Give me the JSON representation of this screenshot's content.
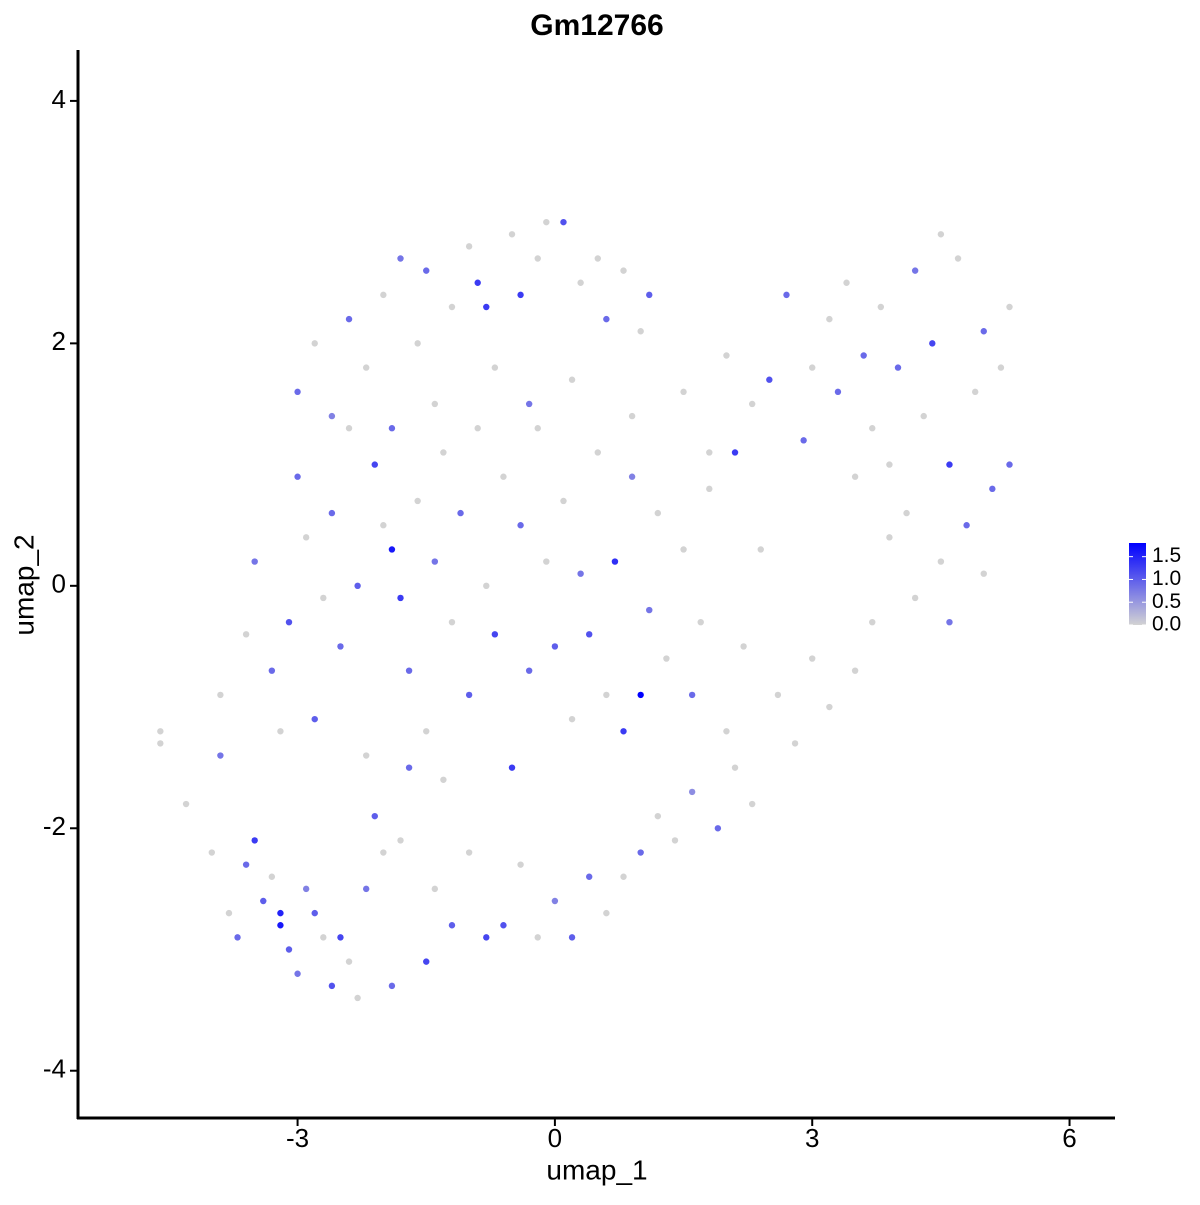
{
  "chart_data": {
    "type": "scatter",
    "title": "Gm12766",
    "x_label": "umap_1",
    "y_label": "umap_2",
    "xlim": [
      -5.56,
      6.53
    ],
    "ylim": [
      -4.39,
      4.42
    ],
    "xticks": [
      -3,
      0,
      3,
      6
    ],
    "yticks": [
      -4,
      -2,
      0,
      2,
      4
    ],
    "color_low": "#d3d3d3",
    "color_high": "#0000ff",
    "colorbar": {
      "lim": [
        0,
        1.8
      ],
      "ticks": [
        {
          "value": 0,
          "label": "0.0"
        },
        0.5,
        {
          "value": 1,
          "label": "1.0"
        },
        1.5
      ]
    },
    "x": [
      -4.6,
      -4.6,
      -4.3,
      -4.0,
      -3.9,
      -3.8,
      -3.7,
      -3.6,
      -3.5,
      -3.4,
      -3.3,
      -3.2,
      -3.2,
      -3.1,
      -3.0,
      -2.9,
      -2.8,
      -2.7,
      -2.6,
      -2.5,
      -2.4,
      -2.3,
      -2.2,
      -2.1,
      -2.0,
      -1.9,
      -1.8,
      -1.7,
      -1.5,
      -1.4,
      -1.3,
      -1.2,
      -1.0,
      -0.8,
      -0.6,
      -0.4,
      -0.2,
      0.0,
      0.2,
      0.4,
      0.6,
      0.8,
      1.0,
      1.2,
      1.4,
      1.6,
      1.9,
      2.1,
      2.3,
      -3.9,
      -3.6,
      -3.5,
      -3.3,
      -3.2,
      -3.1,
      -3.0,
      -2.9,
      -2.8,
      -2.7,
      -2.6,
      -2.5,
      -2.4,
      -2.3,
      -2.2,
      -2.1,
      -2.0,
      -1.9,
      -1.8,
      -1.7,
      -1.6,
      -1.5,
      -1.4,
      -1.3,
      -1.2,
      -1.1,
      -1.0,
      -0.9,
      -0.8,
      -0.7,
      -0.6,
      -0.5,
      -0.4,
      -0.3,
      -0.2,
      -0.1,
      0.0,
      0.1,
      0.2,
      0.3,
      0.4,
      0.5,
      0.6,
      0.7,
      0.8,
      0.9,
      1.0,
      1.1,
      1.2,
      1.3,
      1.5,
      1.6,
      1.7,
      1.8,
      2.0,
      2.2,
      2.4,
      2.6,
      2.8,
      3.0,
      3.2,
      3.5,
      3.7,
      -3.0,
      -2.8,
      -2.6,
      -2.4,
      -2.2,
      -2.0,
      -1.9,
      -1.8,
      -1.6,
      -1.5,
      -1.4,
      -1.2,
      -1.0,
      -0.9,
      -0.8,
      -0.7,
      -0.5,
      -0.4,
      -0.2,
      -0.1,
      0.1,
      0.3,
      0.5,
      0.6,
      0.8,
      1.0,
      1.1,
      0.2,
      -0.3,
      0.9,
      1.5,
      1.8,
      2.0,
      2.1,
      2.3,
      2.5,
      2.7,
      2.9,
      3.0,
      3.2,
      3.3,
      3.4,
      3.5,
      3.6,
      3.7,
      3.8,
      3.9,
      4.0,
      4.1,
      4.2,
      4.3,
      4.4,
      4.5,
      4.6,
      4.7,
      4.8,
      4.9,
      5.0,
      5.1,
      5.2,
      5.3,
      5.3,
      4.5,
      4.2,
      3.9,
      4.6,
      5.0
    ],
    "y": [
      -1.2,
      -1.3,
      -1.8,
      -2.2,
      -1.4,
      -2.7,
      -2.9,
      -2.3,
      -2.1,
      -2.6,
      -2.4,
      -2.8,
      -2.7,
      -3.0,
      -3.2,
      -2.5,
      -2.7,
      -2.9,
      -3.3,
      -2.9,
      -3.1,
      -3.4,
      -2.5,
      -1.9,
      -2.2,
      -3.3,
      -2.1,
      -1.5,
      -3.1,
      -2.5,
      -1.6,
      -2.8,
      -2.2,
      -2.9,
      -2.8,
      -2.3,
      -2.9,
      -2.6,
      -2.9,
      -2.4,
      -2.7,
      -2.4,
      -2.2,
      -1.9,
      -2.1,
      -1.7,
      -2.0,
      -1.5,
      -1.8,
      -0.9,
      -0.4,
      0.2,
      -0.7,
      -1.2,
      -0.3,
      0.9,
      0.4,
      -1.1,
      -0.1,
      0.6,
      -0.5,
      1.3,
      0.0,
      -1.4,
      1.0,
      0.5,
      0.3,
      -0.1,
      -0.7,
      0.7,
      -1.2,
      0.2,
      1.1,
      -0.3,
      0.6,
      -0.9,
      1.3,
      0.0,
      -0.4,
      0.9,
      -1.5,
      0.5,
      -0.7,
      1.3,
      0.2,
      -0.5,
      0.7,
      -1.1,
      0.1,
      -0.4,
      1.1,
      -0.9,
      0.2,
      -1.2,
      0.9,
      -0.9,
      -0.2,
      0.6,
      -0.6,
      0.3,
      -0.9,
      -0.3,
      0.8,
      -1.2,
      -0.5,
      0.3,
      -0.9,
      -1.3,
      -0.6,
      -1.0,
      -0.7,
      -0.3,
      1.6,
      2.0,
      1.4,
      2.2,
      1.8,
      2.4,
      1.3,
      2.7,
      2.0,
      2.6,
      1.5,
      2.3,
      2.8,
      2.5,
      2.3,
      1.8,
      2.9,
      2.4,
      2.7,
      3.0,
      3.0,
      2.5,
      2.7,
      2.2,
      2.6,
      2.1,
      2.4,
      1.7,
      1.5,
      1.4,
      1.6,
      1.1,
      1.9,
      1.1,
      1.5,
      1.7,
      2.4,
      1.2,
      1.8,
      2.2,
      1.6,
      2.5,
      0.9,
      1.9,
      1.3,
      2.3,
      1.0,
      1.8,
      0.6,
      2.6,
      1.4,
      2.0,
      2.9,
      1.0,
      2.7,
      0.5,
      1.6,
      2.1,
      0.8,
      1.8,
      2.3,
      1.0,
      0.2,
      -0.1,
      0.4,
      -0.3,
      0.1
    ],
    "expression": [
      0,
      0,
      0,
      0,
      0.8,
      0,
      0.9,
      0.9,
      1.3,
      1.0,
      0,
      1.6,
      1.5,
      1.0,
      0.8,
      0.7,
      1.0,
      0,
      1.1,
      1.2,
      0,
      0,
      0.8,
      1.0,
      0,
      0.9,
      0,
      0.9,
      1.2,
      0,
      0,
      1.0,
      0,
      1.2,
      1.1,
      0,
      0,
      0.7,
      1.0,
      0.9,
      0,
      0,
      0.9,
      0,
      0,
      0.6,
      0.9,
      0,
      0,
      0,
      0,
      0.8,
      0.9,
      0,
      1.1,
      0.9,
      0,
      1.0,
      0,
      0.9,
      0.9,
      0,
      1.0,
      0,
      1.2,
      0,
      1.6,
      1.3,
      0.9,
      0,
      0,
      0.8,
      0,
      0,
      0.9,
      1.0,
      0,
      0,
      1.2,
      0,
      1.3,
      0.9,
      0.9,
      0,
      0,
      1.0,
      0,
      0,
      0.8,
      1.1,
      0,
      0,
      1.4,
      1.3,
      0.7,
      1.8,
      0.8,
      0,
      0,
      0,
      0.9,
      0,
      0,
      0,
      0,
      0,
      0,
      0,
      0,
      0,
      0,
      0,
      0.9,
      0,
      0.7,
      0.9,
      0,
      0,
      0.9,
      0.8,
      0,
      0.9,
      0,
      0,
      0,
      1.3,
      1.3,
      0,
      0,
      1.3,
      0,
      0,
      1.1,
      0,
      0,
      0.9,
      0,
      0,
      1.0,
      0,
      0.8,
      0,
      0,
      0,
      0,
      1.3,
      0,
      1.1,
      0.9,
      0.9,
      0,
      0,
      0.9,
      0,
      0,
      0.9,
      0,
      0,
      0,
      0.9,
      0,
      0.8,
      0,
      1.2,
      0,
      1.3,
      0,
      0.9,
      0,
      0.9,
      0.9,
      0,
      0,
      0.9,
      0,
      0,
      0,
      0.8,
      0
    ]
  }
}
